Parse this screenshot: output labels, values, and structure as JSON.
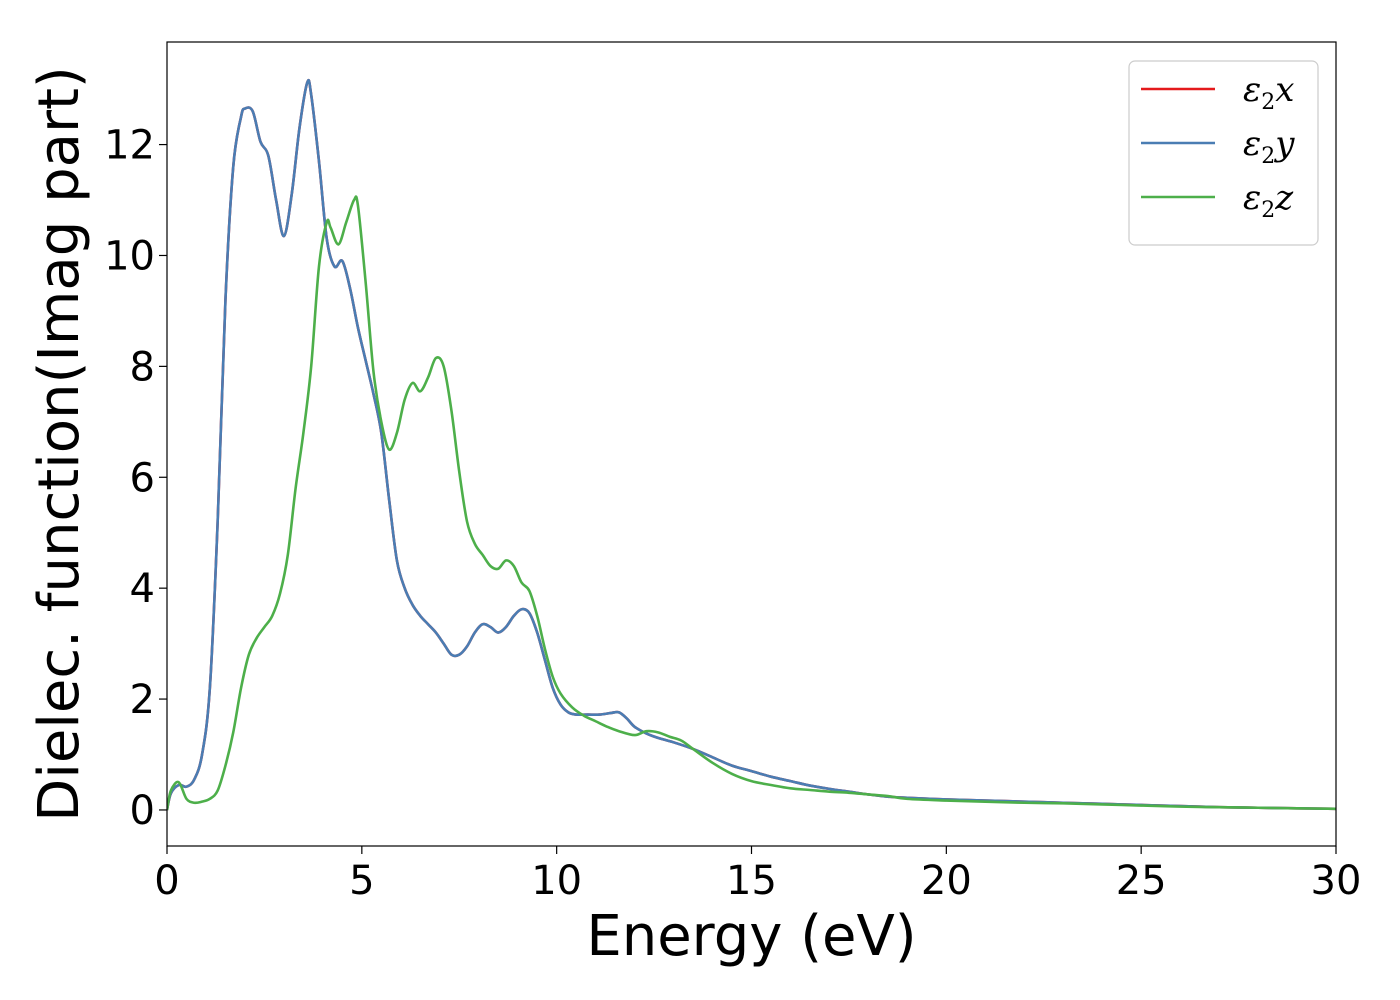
{
  "chart_data": {
    "type": "line",
    "xlabel": "Energy (eV)",
    "ylabel": "Dielec. function(Imag part)",
    "xlim": [
      0,
      30
    ],
    "ylim": [
      -0.65,
      13.85
    ],
    "xticks": [
      0,
      5,
      10,
      15,
      20,
      25,
      30
    ],
    "yticks": [
      0,
      2,
      4,
      6,
      8,
      10,
      12
    ],
    "grid": false,
    "legend_position": "top-right",
    "series": [
      {
        "name": "x",
        "label_main": "ε",
        "label_sub": "2",
        "label_suffix": "x",
        "color": "#e41a1c",
        "x": [
          0,
          0.1,
          0.3,
          0.5,
          0.7,
          0.9,
          1.1,
          1.3,
          1.5,
          1.7,
          1.9,
          2.0,
          2.2,
          2.4,
          2.6,
          2.8,
          3.0,
          3.2,
          3.4,
          3.6,
          3.7,
          3.9,
          4.1,
          4.3,
          4.5,
          4.7,
          4.9,
          5.1,
          5.3,
          5.5,
          5.7,
          5.9,
          6.1,
          6.3,
          6.5,
          6.7,
          6.9,
          7.1,
          7.3,
          7.5,
          7.7,
          7.9,
          8.1,
          8.3,
          8.5,
          8.7,
          8.9,
          9.1,
          9.3,
          9.5,
          9.7,
          9.9,
          10.1,
          10.3,
          10.5,
          10.8,
          11.1,
          11.4,
          11.6,
          11.8,
          12.0,
          12.3,
          12.6,
          13.0,
          13.5,
          14.0,
          14.5,
          15.0,
          15.5,
          16.0,
          16.5,
          17.0,
          17.5,
          18.0,
          18.5,
          19.0,
          20.0,
          21.0,
          22.0,
          23.0,
          24.0,
          25.0,
          26.0,
          27.0,
          28.0,
          29.0,
          30.0
        ],
        "y": [
          0,
          0.3,
          0.45,
          0.42,
          0.55,
          1.0,
          2.2,
          5.2,
          9.2,
          11.6,
          12.5,
          12.65,
          12.6,
          12.05,
          11.8,
          11.0,
          10.35,
          11.1,
          12.3,
          13.12,
          12.9,
          11.7,
          10.3,
          9.8,
          9.9,
          9.4,
          8.7,
          8.1,
          7.5,
          6.8,
          5.6,
          4.5,
          4.0,
          3.7,
          3.5,
          3.35,
          3.2,
          3.0,
          2.8,
          2.8,
          2.95,
          3.2,
          3.35,
          3.3,
          3.2,
          3.3,
          3.5,
          3.62,
          3.55,
          3.2,
          2.7,
          2.2,
          1.9,
          1.76,
          1.72,
          1.72,
          1.72,
          1.75,
          1.76,
          1.65,
          1.5,
          1.38,
          1.3,
          1.22,
          1.1,
          0.95,
          0.8,
          0.7,
          0.6,
          0.52,
          0.44,
          0.38,
          0.33,
          0.28,
          0.24,
          0.22,
          0.19,
          0.17,
          0.15,
          0.13,
          0.11,
          0.09,
          0.07,
          0.05,
          0.04,
          0.03,
          0.02
        ]
      },
      {
        "name": "y",
        "label_main": "ε",
        "label_sub": "2",
        "label_suffix": "y",
        "color": "#4a7db3",
        "x": [
          0,
          0.1,
          0.3,
          0.5,
          0.7,
          0.9,
          1.1,
          1.3,
          1.5,
          1.7,
          1.9,
          2.0,
          2.2,
          2.4,
          2.6,
          2.8,
          3.0,
          3.2,
          3.4,
          3.6,
          3.7,
          3.9,
          4.1,
          4.3,
          4.5,
          4.7,
          4.9,
          5.1,
          5.3,
          5.5,
          5.7,
          5.9,
          6.1,
          6.3,
          6.5,
          6.7,
          6.9,
          7.1,
          7.3,
          7.5,
          7.7,
          7.9,
          8.1,
          8.3,
          8.5,
          8.7,
          8.9,
          9.1,
          9.3,
          9.5,
          9.7,
          9.9,
          10.1,
          10.3,
          10.5,
          10.8,
          11.1,
          11.4,
          11.6,
          11.8,
          12.0,
          12.3,
          12.6,
          13.0,
          13.5,
          14.0,
          14.5,
          15.0,
          15.5,
          16.0,
          16.5,
          17.0,
          17.5,
          18.0,
          18.5,
          19.0,
          20.0,
          21.0,
          22.0,
          23.0,
          24.0,
          25.0,
          26.0,
          27.0,
          28.0,
          29.0,
          30.0
        ],
        "y": [
          0,
          0.3,
          0.45,
          0.42,
          0.55,
          1.0,
          2.2,
          5.2,
          9.2,
          11.6,
          12.5,
          12.65,
          12.6,
          12.05,
          11.8,
          11.0,
          10.35,
          11.1,
          12.3,
          13.12,
          12.9,
          11.7,
          10.3,
          9.8,
          9.9,
          9.4,
          8.7,
          8.1,
          7.5,
          6.8,
          5.6,
          4.5,
          4.0,
          3.7,
          3.5,
          3.35,
          3.2,
          3.0,
          2.8,
          2.8,
          2.95,
          3.2,
          3.35,
          3.3,
          3.2,
          3.3,
          3.5,
          3.62,
          3.55,
          3.2,
          2.7,
          2.2,
          1.9,
          1.76,
          1.72,
          1.72,
          1.72,
          1.75,
          1.76,
          1.65,
          1.5,
          1.38,
          1.3,
          1.22,
          1.1,
          0.95,
          0.8,
          0.7,
          0.6,
          0.52,
          0.44,
          0.38,
          0.33,
          0.28,
          0.24,
          0.22,
          0.19,
          0.17,
          0.15,
          0.13,
          0.11,
          0.09,
          0.07,
          0.05,
          0.04,
          0.03,
          0.02
        ]
      },
      {
        "name": "z",
        "label_main": "ε",
        "label_sub": "2",
        "label_suffix": "z",
        "color": "#4daf4a",
        "x": [
          0,
          0.1,
          0.3,
          0.5,
          0.7,
          0.9,
          1.1,
          1.3,
          1.5,
          1.7,
          1.9,
          2.1,
          2.3,
          2.5,
          2.7,
          2.9,
          3.1,
          3.3,
          3.5,
          3.7,
          3.9,
          4.1,
          4.2,
          4.4,
          4.6,
          4.8,
          4.9,
          5.1,
          5.3,
          5.5,
          5.7,
          5.9,
          6.1,
          6.3,
          6.5,
          6.7,
          6.9,
          7.1,
          7.3,
          7.5,
          7.7,
          7.9,
          8.1,
          8.3,
          8.5,
          8.7,
          8.9,
          9.1,
          9.3,
          9.5,
          9.7,
          9.9,
          10.1,
          10.4,
          10.7,
          11.0,
          11.3,
          11.6,
          12.0,
          12.3,
          12.6,
          12.9,
          13.2,
          13.5,
          14.0,
          14.5,
          15.0,
          15.5,
          16.0,
          16.5,
          17.0,
          17.5,
          18.0,
          18.5,
          19.0,
          20.0,
          21.0,
          22.0,
          23.0,
          24.0,
          25.0,
          26.0,
          27.0,
          28.0,
          29.0,
          30.0
        ],
        "y": [
          0,
          0.35,
          0.5,
          0.2,
          0.13,
          0.15,
          0.2,
          0.35,
          0.8,
          1.4,
          2.2,
          2.8,
          3.1,
          3.3,
          3.5,
          3.9,
          4.6,
          5.8,
          6.8,
          8.0,
          9.8,
          10.6,
          10.5,
          10.2,
          10.6,
          11.0,
          10.9,
          9.5,
          7.9,
          7.0,
          6.5,
          6.8,
          7.4,
          7.7,
          7.55,
          7.8,
          8.15,
          8.0,
          7.2,
          6.1,
          5.2,
          4.8,
          4.6,
          4.4,
          4.35,
          4.5,
          4.4,
          4.1,
          3.95,
          3.5,
          2.9,
          2.4,
          2.1,
          1.85,
          1.7,
          1.6,
          1.5,
          1.42,
          1.35,
          1.42,
          1.4,
          1.32,
          1.25,
          1.1,
          0.85,
          0.65,
          0.52,
          0.45,
          0.39,
          0.36,
          0.33,
          0.31,
          0.28,
          0.25,
          0.2,
          0.17,
          0.15,
          0.13,
          0.12,
          0.1,
          0.08,
          0.06,
          0.05,
          0.04,
          0.03,
          0.02
        ]
      }
    ]
  }
}
